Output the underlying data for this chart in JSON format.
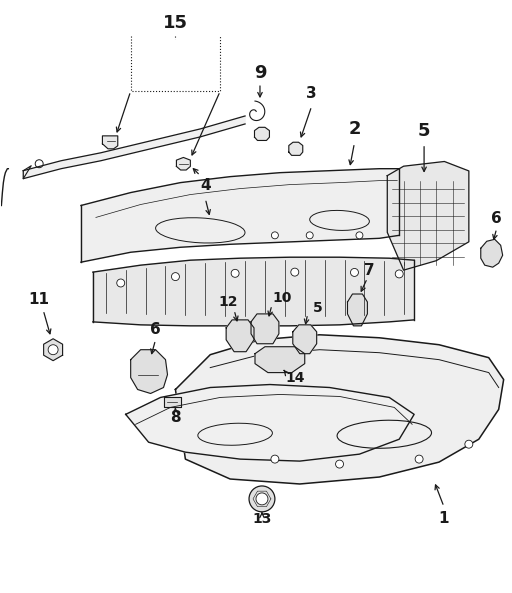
{
  "background_color": "#ffffff",
  "line_color": "#1a1a1a",
  "fig_width": 5.12,
  "fig_height": 5.93,
  "dpi": 100
}
